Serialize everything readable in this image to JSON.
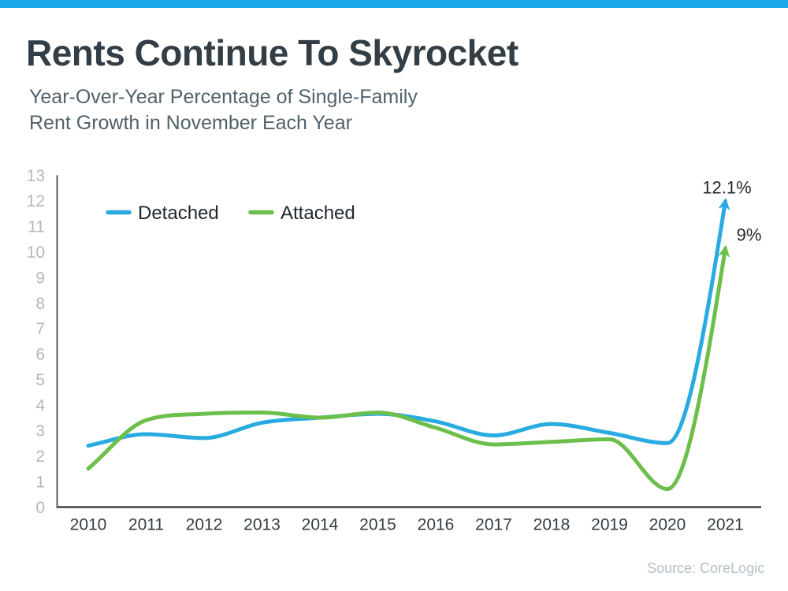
{
  "page": {
    "accent_bar_color": "#1aa7eb",
    "background_color": "#ffffff"
  },
  "header": {
    "title": "Rents Continue To Skyrocket",
    "subtitle_line1": "Year-Over-Year Percentage of Single-Family",
    "subtitle_line2": "Rent Growth in November Each Year"
  },
  "footer": {
    "source": "Source: CoreLogic"
  },
  "chart_data": {
    "type": "line",
    "title": "",
    "xlabel": "",
    "ylabel": "",
    "x": [
      "2010",
      "2011",
      "2012",
      "2013",
      "2014",
      "2015",
      "2016",
      "2017",
      "2018",
      "2019",
      "2020",
      "2021"
    ],
    "ylim": [
      0,
      13
    ],
    "y_tick_interval": 1,
    "grid": false,
    "legend_position": "top-left-inside",
    "series": [
      {
        "name": "Detached",
        "color": "#29abe2",
        "values": [
          2.4,
          2.85,
          2.7,
          3.3,
          3.5,
          3.65,
          3.35,
          2.8,
          3.25,
          2.9,
          2.5,
          12.1
        ],
        "end_label": "12.1%",
        "arrow_tip_value": 11.98
      },
      {
        "name": "Attached",
        "color": "#6cbf4b",
        "values": [
          1.5,
          3.4,
          3.65,
          3.7,
          3.5,
          3.7,
          3.1,
          2.45,
          2.55,
          2.65,
          0.7,
          9.0
        ],
        "end_label": "9%",
        "arrow_tip_value": 10.13
      }
    ]
  }
}
